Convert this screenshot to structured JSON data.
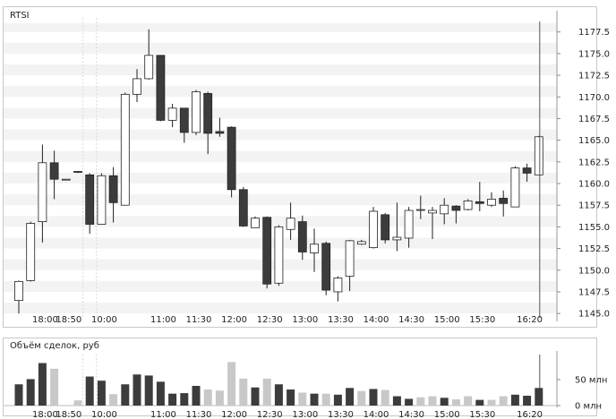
{
  "main_panel": {
    "title": "RTSI"
  },
  "volume_panel": {
    "title": "Объём сделок, руб"
  },
  "colors": {
    "up_fill": "#ffffff",
    "down_fill": "#3c3c3c",
    "candle_stroke": "#222222",
    "band": "#f3f3f3",
    "vol_dark": "#3c3c3c",
    "vol_light": "#c8c8c8",
    "cursor": "#555555",
    "grid_dashed": "#d9d9d9"
  },
  "chart_data": [
    {
      "type": "candlestick",
      "title": "RTSI",
      "ylim": [
        1144.5,
        1178.5
      ],
      "y_ticks": [
        "1145.0",
        "1147.5",
        "1150.0",
        "1152.5",
        "1155.0",
        "1157.5",
        "1160.0",
        "1162.5",
        "1165.0",
        "1167.5",
        "1170.0",
        "1172.5",
        "1175.0",
        "1177.5"
      ],
      "x_ticks": [
        "18:00",
        "18:50",
        "10:00",
        "11:00",
        "11:30",
        "12:00",
        "12:30",
        "13:00",
        "13:30",
        "14:00",
        "14:30",
        "15:00",
        "15:30",
        "16:20"
      ],
      "session_break_after_candle": 5,
      "candles": [
        {
          "o": 1146.5,
          "h": 1148.8,
          "l": 1145.0,
          "c": 1148.7
        },
        {
          "o": 1148.8,
          "h": 1155.6,
          "l": 1148.7,
          "c": 1155.4
        },
        {
          "o": 1155.6,
          "h": 1164.5,
          "l": 1153.2,
          "c": 1162.4
        },
        {
          "o": 1162.4,
          "h": 1163.8,
          "l": 1158.2,
          "c": 1160.5
        },
        {
          "o": 1160.5,
          "h": 1160.5,
          "l": 1160.4,
          "c": 1160.5
        },
        {
          "o": 1161.4,
          "h": 1161.4,
          "l": 1161.2,
          "c": 1161.3
        },
        {
          "o": 1161.0,
          "h": 1161.2,
          "l": 1154.2,
          "c": 1155.3
        },
        {
          "o": 1155.3,
          "h": 1161.2,
          "l": 1155.3,
          "c": 1160.9
        },
        {
          "o": 1160.9,
          "h": 1161.9,
          "l": 1155.5,
          "c": 1157.8
        },
        {
          "o": 1157.5,
          "h": 1170.5,
          "l": 1157.5,
          "c": 1170.3
        },
        {
          "o": 1170.3,
          "h": 1173.2,
          "l": 1169.4,
          "c": 1172.1
        },
        {
          "o": 1172.1,
          "h": 1177.8,
          "l": 1172.0,
          "c": 1174.8
        },
        {
          "o": 1174.8,
          "h": 1174.8,
          "l": 1167.2,
          "c": 1167.3
        },
        {
          "o": 1167.3,
          "h": 1169.2,
          "l": 1166.5,
          "c": 1168.7
        },
        {
          "o": 1168.7,
          "h": 1168.7,
          "l": 1164.7,
          "c": 1165.9
        },
        {
          "o": 1165.9,
          "h": 1170.8,
          "l": 1165.6,
          "c": 1170.6
        },
        {
          "o": 1170.4,
          "h": 1170.6,
          "l": 1163.4,
          "c": 1165.8
        },
        {
          "o": 1166.0,
          "h": 1167.6,
          "l": 1165.4,
          "c": 1165.8
        },
        {
          "o": 1166.5,
          "h": 1166.6,
          "l": 1158.4,
          "c": 1159.3
        },
        {
          "o": 1159.3,
          "h": 1159.6,
          "l": 1155.0,
          "c": 1155.1
        },
        {
          "o": 1154.9,
          "h": 1156.2,
          "l": 1154.9,
          "c": 1156.0
        },
        {
          "o": 1156.1,
          "h": 1156.2,
          "l": 1147.9,
          "c": 1148.4
        },
        {
          "o": 1148.5,
          "h": 1155.2,
          "l": 1148.2,
          "c": 1155.0
        },
        {
          "o": 1154.7,
          "h": 1157.8,
          "l": 1153.5,
          "c": 1156.0
        },
        {
          "o": 1155.6,
          "h": 1156.3,
          "l": 1151.2,
          "c": 1152.1
        },
        {
          "o": 1152.0,
          "h": 1154.8,
          "l": 1149.8,
          "c": 1153.0
        },
        {
          "o": 1153.1,
          "h": 1153.3,
          "l": 1147.1,
          "c": 1147.7
        },
        {
          "o": 1147.5,
          "h": 1149.3,
          "l": 1146.4,
          "c": 1149.1
        },
        {
          "o": 1149.3,
          "h": 1153.5,
          "l": 1147.6,
          "c": 1153.4
        },
        {
          "o": 1153.0,
          "h": 1153.5,
          "l": 1152.9,
          "c": 1153.3
        },
        {
          "o": 1152.6,
          "h": 1157.3,
          "l": 1152.5,
          "c": 1156.8
        },
        {
          "o": 1156.4,
          "h": 1156.6,
          "l": 1153.1,
          "c": 1153.5
        },
        {
          "o": 1153.5,
          "h": 1157.8,
          "l": 1152.2,
          "c": 1153.8
        },
        {
          "o": 1153.7,
          "h": 1157.3,
          "l": 1152.6,
          "c": 1156.9
        },
        {
          "o": 1156.9,
          "h": 1158.6,
          "l": 1155.9,
          "c": 1157.0
        },
        {
          "o": 1156.6,
          "h": 1157.3,
          "l": 1153.6,
          "c": 1156.9
        },
        {
          "o": 1156.5,
          "h": 1158.3,
          "l": 1155.3,
          "c": 1157.5
        },
        {
          "o": 1157.4,
          "h": 1157.5,
          "l": 1155.4,
          "c": 1156.9
        },
        {
          "o": 1157.0,
          "h": 1158.2,
          "l": 1156.9,
          "c": 1158.0
        },
        {
          "o": 1157.9,
          "h": 1160.2,
          "l": 1156.8,
          "c": 1157.7
        },
        {
          "o": 1157.5,
          "h": 1159.0,
          "l": 1157.3,
          "c": 1158.2
        },
        {
          "o": 1158.3,
          "h": 1159.2,
          "l": 1156.2,
          "c": 1157.7
        },
        {
          "o": 1157.3,
          "h": 1162.0,
          "l": 1157.3,
          "c": 1161.8
        },
        {
          "o": 1161.8,
          "h": 1162.3,
          "l": 1160.2,
          "c": 1161.2
        },
        {
          "o": 1161.0,
          "h": 1165.5,
          "l": 1161.0,
          "c": 1165.4
        }
      ]
    },
    {
      "type": "bar",
      "title": "Объём сделок, руб",
      "ylim": [
        0,
        95
      ],
      "y_ticks": [
        {
          "value": 0,
          "label": "0 млн"
        },
        {
          "value": 50,
          "label": "50 млн"
        }
      ],
      "x_ticks": [
        "18:00",
        "18:50",
        "10:00",
        "11:00",
        "11:30",
        "12:00",
        "12:30",
        "13:00",
        "13:30",
        "14:00",
        "14:30",
        "15:00",
        "15:30",
        "16:20"
      ],
      "bars": [
        {
          "v": 41,
          "light": false
        },
        {
          "v": 51,
          "light": false
        },
        {
          "v": 82,
          "light": false
        },
        {
          "v": 71,
          "light": true
        },
        {
          "v": 0,
          "light": false
        },
        {
          "v": 10,
          "light": true
        },
        {
          "v": 56,
          "light": false
        },
        {
          "v": 48,
          "light": false
        },
        {
          "v": 22,
          "light": true
        },
        {
          "v": 41,
          "light": false
        },
        {
          "v": 60,
          "light": false
        },
        {
          "v": 58,
          "light": false
        },
        {
          "v": 46,
          "light": false
        },
        {
          "v": 23,
          "light": false
        },
        {
          "v": 24,
          "light": false
        },
        {
          "v": 38,
          "light": false
        },
        {
          "v": 31,
          "light": true
        },
        {
          "v": 29,
          "light": true
        },
        {
          "v": 84,
          "light": true
        },
        {
          "v": 52,
          "light": true
        },
        {
          "v": 35,
          "light": false
        },
        {
          "v": 52,
          "light": true
        },
        {
          "v": 41,
          "light": false
        },
        {
          "v": 31,
          "light": false
        },
        {
          "v": 25,
          "light": true
        },
        {
          "v": 23,
          "light": false
        },
        {
          "v": 23,
          "light": true
        },
        {
          "v": 21,
          "light": false
        },
        {
          "v": 34,
          "light": false
        },
        {
          "v": 28,
          "light": true
        },
        {
          "v": 32,
          "light": false
        },
        {
          "v": 30,
          "light": true
        },
        {
          "v": 18,
          "light": false
        },
        {
          "v": 13,
          "light": false
        },
        {
          "v": 16,
          "light": true
        },
        {
          "v": 18,
          "light": true
        },
        {
          "v": 15,
          "light": false
        },
        {
          "v": 12,
          "light": true
        },
        {
          "v": 18,
          "light": true
        },
        {
          "v": 11,
          "light": false
        },
        {
          "v": 11,
          "light": true
        },
        {
          "v": 18,
          "light": true
        },
        {
          "v": 21,
          "light": false
        },
        {
          "v": 19,
          "light": false
        },
        {
          "v": 34,
          "light": false
        }
      ]
    }
  ]
}
